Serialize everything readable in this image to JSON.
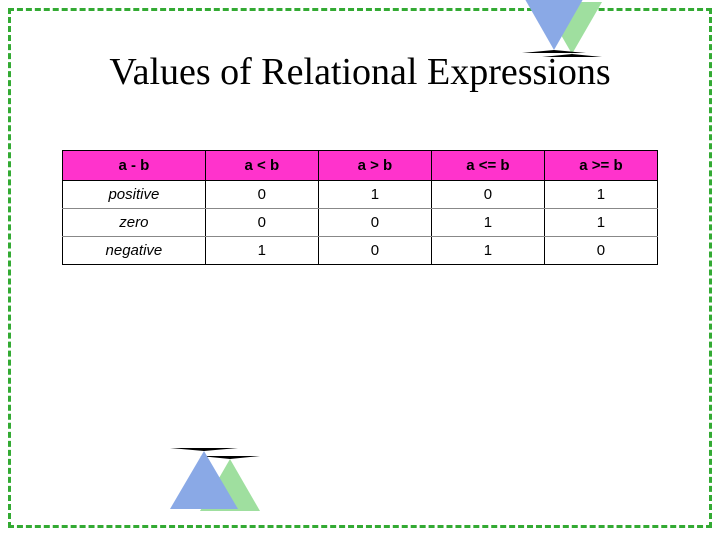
{
  "title": "Values of Relational Expressions",
  "border_color": "#33aa33",
  "table": {
    "header_bg": "#ff33cc",
    "header_fg": "#000000",
    "cell_fg": "#000000",
    "columns": [
      "a - b",
      "a < b",
      "a > b",
      "a <= b",
      "a >= b"
    ],
    "rows": [
      {
        "label": "positive",
        "values": [
          "0",
          "1",
          "0",
          "1"
        ]
      },
      {
        "label": "zero",
        "values": [
          "0",
          "0",
          "1",
          "1"
        ]
      },
      {
        "label": "negative",
        "values": [
          "1",
          "0",
          "1",
          "0"
        ]
      }
    ],
    "col_widths": [
      "24%",
      "19%",
      "19%",
      "19%",
      "19%"
    ]
  },
  "decor": {
    "triangle_blue": "#8aa9e6",
    "triangle_green": "#9fdf9f"
  }
}
